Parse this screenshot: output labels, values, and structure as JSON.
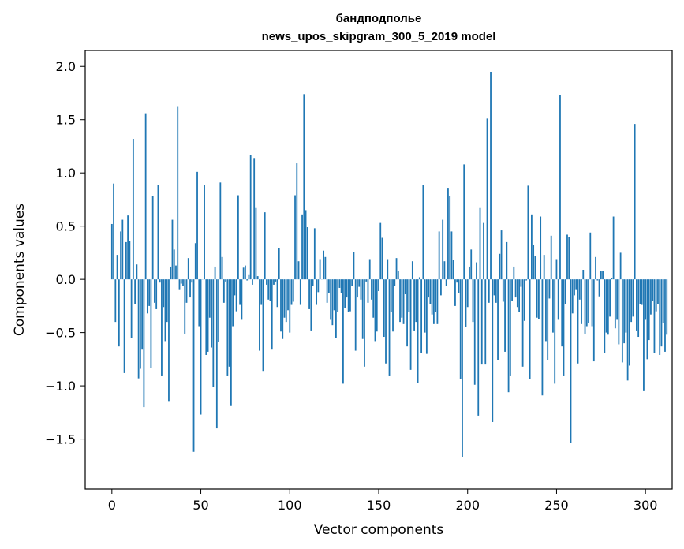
{
  "chart_data": {
    "type": "bar",
    "title_line1": "бандподполье",
    "title_line2": "news_upos_skipgram_300_5_2019 model",
    "xlabel": "Vector components",
    "ylabel": "Components values",
    "xlim": [
      -15,
      315
    ],
    "ylim": [
      -1.97,
      2.15
    ],
    "xticks": [
      0,
      50,
      100,
      150,
      200,
      250,
      300
    ],
    "yticks": [
      2.0,
      1.5,
      1.0,
      0.5,
      0.0,
      -0.5,
      -1.0,
      -1.5
    ],
    "ytick_labels": [
      "2.0",
      "1.5",
      "1.0",
      "0.5",
      "0.0",
      "−0.5",
      "−1.0",
      "−1.5"
    ],
    "color": "#1f77b4",
    "values": [
      0.52,
      0.9,
      -0.4,
      0.23,
      -0.63,
      0.45,
      0.56,
      -0.88,
      0.35,
      0.6,
      0.36,
      -0.55,
      1.32,
      -0.23,
      0.14,
      -0.93,
      -0.84,
      -0.66,
      -1.2,
      1.56,
      -0.32,
      -0.25,
      -0.83,
      0.78,
      -0.22,
      -0.28,
      0.89,
      -0.03,
      -0.91,
      -0.26,
      -0.58,
      -0.4,
      -1.15,
      0.12,
      0.56,
      0.28,
      0.13,
      1.62,
      -0.1,
      -0.04,
      -0.06,
      -0.51,
      -0.22,
      0.2,
      -0.17,
      -0.03,
      -1.62,
      0.34,
      1.01,
      -0.44,
      -1.27,
      0.0,
      0.89,
      -0.71,
      -0.68,
      -0.36,
      -0.64,
      -1.01,
      0.12,
      -1.4,
      -0.59,
      0.91,
      0.21,
      -0.22,
      -0.02,
      -0.91,
      -0.82,
      -1.19,
      -0.44,
      -0.15,
      -0.3,
      0.79,
      -0.24,
      -0.38,
      0.11,
      0.13,
      -0.01,
      0.04,
      1.17,
      -0.05,
      1.14,
      0.67,
      0.03,
      -0.67,
      -0.24,
      -0.86,
      0.63,
      -0.05,
      -0.19,
      -0.2,
      -0.66,
      -0.05,
      -0.02,
      -0.26,
      0.29,
      -0.49,
      -0.56,
      -0.36,
      -0.4,
      -0.29,
      -0.5,
      -0.24,
      -0.21,
      0.79,
      1.09,
      0.17,
      -0.24,
      0.61,
      1.74,
      0.65,
      0.49,
      -0.28,
      -0.48,
      -0.06,
      0.48,
      -0.24,
      -0.12,
      0.19,
      0.0,
      0.27,
      0.21,
      -0.22,
      -0.13,
      -0.38,
      -0.43,
      -0.29,
      -0.55,
      -0.31,
      -0.08,
      -0.13,
      -0.98,
      -0.27,
      -0.17,
      -0.31,
      -0.3,
      -0.06,
      0.26,
      -0.67,
      -0.17,
      -0.07,
      -0.19,
      -0.56,
      -0.82,
      -0.02,
      -0.22,
      0.19,
      -0.19,
      -0.36,
      -0.58,
      -0.49,
      -0.11,
      0.53,
      0.39,
      -0.54,
      -0.79,
      0.19,
      -0.91,
      -0.31,
      -0.49,
      -0.06,
      0.2,
      0.08,
      -0.4,
      -0.36,
      -0.42,
      -0.14,
      -0.63,
      -0.31,
      -0.85,
      0.17,
      -0.48,
      -0.4,
      -0.97,
      0.02,
      -0.69,
      0.89,
      -0.5,
      -0.7,
      -0.17,
      -0.23,
      -0.33,
      -0.42,
      -0.31,
      -0.42,
      0.45,
      -0.15,
      0.56,
      0.17,
      -0.06,
      0.86,
      0.78,
      0.45,
      0.18,
      -0.25,
      -0.03,
      -0.13,
      -0.94,
      -1.67,
      1.08,
      -0.45,
      -0.26,
      0.12,
      0.28,
      -0.4,
      -0.99,
      0.16,
      -1.28,
      0.67,
      -0.8,
      0.53,
      -0.8,
      1.51,
      -0.22,
      1.95,
      -1.34,
      -0.15,
      -0.22,
      -0.76,
      0.24,
      0.46,
      -0.21,
      -0.68,
      0.35,
      -1.06,
      -0.91,
      -0.2,
      0.12,
      -0.17,
      -0.26,
      -0.31,
      -0.07,
      -0.82,
      -0.39,
      -0.01,
      0.88,
      -0.94,
      0.61,
      0.32,
      0.22,
      -0.36,
      -0.37,
      0.59,
      -1.09,
      0.23,
      -0.58,
      -0.76,
      -0.18,
      0.41,
      -0.5,
      -0.98,
      0.19,
      -0.38,
      1.73,
      -0.63,
      -0.91,
      -0.23,
      0.42,
      0.4,
      -1.54,
      -0.32,
      -0.15,
      -0.1,
      -0.79,
      -0.19,
      -0.42,
      0.09,
      -0.51,
      -0.44,
      -0.41,
      0.44,
      -0.44,
      -0.77,
      0.21,
      -0.01,
      -0.16,
      0.08,
      0.08,
      -0.69,
      -0.5,
      -0.52,
      -0.35,
      0.01,
      0.59,
      -0.46,
      -0.38,
      -0.61,
      0.25,
      -0.78,
      -0.6,
      -0.5,
      -0.95,
      -0.81,
      -0.4,
      -0.35,
      1.46,
      -0.48,
      -0.54,
      -0.23,
      -0.24,
      -1.05,
      -0.38,
      -0.75,
      -0.57,
      -0.33,
      -0.2,
      -0.69,
      -0.3,
      -0.23,
      -0.71,
      -0.63,
      -0.41,
      -0.68,
      -0.52
    ]
  }
}
